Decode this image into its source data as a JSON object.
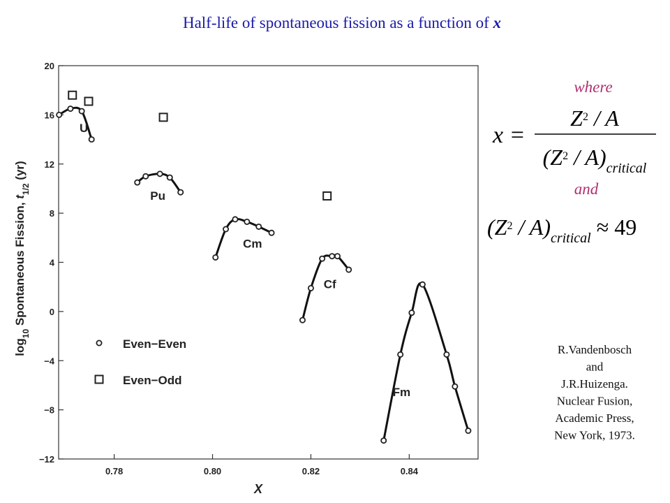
{
  "title_parts": [
    "Half-life of spontaneous fission as a function of ",
    "x"
  ],
  "chart_data": {
    "type": "scatter",
    "xlabel": "X",
    "ylabel_parts": [
      "log",
      "10",
      " Spontaneous Fission, ",
      "t",
      "1/2",
      " (yr)"
    ],
    "xlim": [
      0.7687,
      0.854
    ],
    "ylim": [
      -12,
      20
    ],
    "xticks": [
      0.78,
      {
        "value": 0.8,
        "label": "0.80"
      },
      0.82,
      0.84
    ],
    "yticks": [
      {
        "value": -12,
        "label": "−12"
      },
      {
        "value": -8,
        "label": "−8"
      },
      {
        "value": -4,
        "label": "−4"
      },
      0,
      4,
      8,
      12,
      16,
      20
    ],
    "series": [
      {
        "name": "U",
        "marker": "circle",
        "x": [
          0.7688,
          0.7711,
          0.7734,
          0.7754
        ],
        "y": [
          16.0,
          16.5,
          16.3,
          14.0
        ]
      },
      {
        "name": "Pu",
        "marker": "circle",
        "x": [
          0.7847,
          0.7864,
          0.7893,
          0.7913,
          0.7935
        ],
        "y": [
          10.5,
          11.0,
          11.2,
          10.9,
          9.7
        ]
      },
      {
        "name": "Cm",
        "marker": "circle",
        "x": [
          0.8006,
          0.8027,
          0.8046,
          0.807,
          0.8094,
          0.812
        ],
        "y": [
          4.4,
          6.7,
          7.5,
          7.3,
          6.9,
          6.4
        ]
      },
      {
        "name": "Cf",
        "marker": "circle",
        "x": [
          0.8183,
          0.82,
          0.8223,
          0.8243,
          0.8254,
          0.8277
        ],
        "y": [
          -0.7,
          1.9,
          4.3,
          4.5,
          4.5,
          3.4
        ]
      },
      {
        "name": "Fm",
        "marker": "circle",
        "x": [
          0.8348,
          0.8382,
          0.8405,
          0.8427,
          0.8476,
          0.8493,
          0.852
        ],
        "y": [
          -10.5,
          -3.5,
          -0.1,
          2.2,
          -3.5,
          -6.1,
          -9.7
        ]
      }
    ],
    "even_odd": {
      "marker": "square",
      "x": [
        0.7715,
        0.7748,
        0.79,
        0.8233
      ],
      "y": [
        17.6,
        17.1,
        15.8,
        9.4
      ]
    },
    "legend": [
      {
        "label": "Even−Even",
        "marker": "circle"
      },
      {
        "label": "Even−Odd",
        "marker": "square"
      }
    ]
  },
  "sidebar": {
    "where": "where",
    "formula1": {
      "lhs": "x =",
      "num_z": "Z",
      "num_exp": "2",
      "num_rest": " / A",
      "den_z": "(Z",
      "den_exp": "2",
      "den_rest": " / A)",
      "den_sub": "critical"
    },
    "and": "and",
    "formula2": {
      "z": "(Z",
      "exp": "2",
      "rest": " / A)",
      "sub": "critical",
      "approx": " ≈ 49"
    },
    "citation": [
      "R.Vandenbosch",
      "and",
      "J.R.Huizenga.",
      "Nuclear Fusion,",
      "Academic Press,",
      "New York, 1973."
    ]
  }
}
